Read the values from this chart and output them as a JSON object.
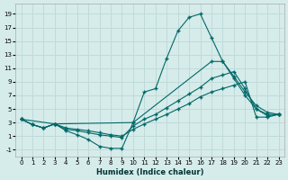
{
  "xlabel": "Humidex (Indice chaleur)",
  "background_color": "#d6ecea",
  "grid_color": "#c0dada",
  "line_color": "#006868",
  "xlim": [
    -0.5,
    23.5
  ],
  "ylim": [
    -2.0,
    20.5
  ],
  "xticks": [
    0,
    1,
    2,
    3,
    4,
    5,
    6,
    7,
    8,
    9,
    10,
    11,
    12,
    13,
    14,
    15,
    16,
    17,
    18,
    19,
    20,
    21,
    22,
    23
  ],
  "yticks": [
    -1,
    1,
    3,
    5,
    7,
    9,
    11,
    13,
    15,
    17,
    19
  ],
  "line1_x": [
    0,
    1,
    2,
    3,
    4,
    5,
    6,
    7,
    8,
    9,
    10,
    11,
    12,
    13,
    14,
    15,
    16,
    17,
    18,
    19,
    20,
    21,
    22,
    23
  ],
  "line1_y": [
    3.5,
    2.7,
    2.2,
    2.8,
    1.8,
    1.2,
    0.5,
    -0.5,
    -0.8,
    -0.8,
    3.0,
    7.5,
    8.0,
    12.5,
    16.5,
    18.5,
    19.0,
    15.5,
    12.0,
    9.8,
    7.5,
    5.5,
    4.5,
    4.2
  ],
  "line2_x": [
    0,
    3,
    10,
    17,
    18,
    19,
    20,
    21,
    22,
    23
  ],
  "line2_y": [
    3.5,
    2.8,
    3.0,
    12.0,
    12.0,
    9.5,
    7.0,
    5.0,
    4.2,
    4.2
  ],
  "line3_x": [
    0,
    1,
    2,
    3,
    4,
    5,
    6,
    7,
    8,
    9,
    10,
    11,
    12,
    13,
    14,
    15,
    16,
    17,
    18,
    19,
    20,
    21,
    22,
    23
  ],
  "line3_y": [
    3.5,
    2.7,
    2.2,
    2.8,
    2.0,
    1.8,
    1.5,
    1.2,
    1.0,
    0.8,
    2.5,
    3.5,
    4.2,
    5.2,
    6.2,
    7.2,
    8.2,
    9.5,
    10.0,
    10.5,
    8.0,
    5.0,
    4.0,
    4.2
  ],
  "line4_x": [
    0,
    1,
    2,
    3,
    4,
    5,
    6,
    7,
    8,
    9,
    10,
    11,
    12,
    13,
    14,
    15,
    16,
    17,
    18,
    19,
    20,
    21,
    22,
    23
  ],
  "line4_y": [
    3.5,
    2.7,
    2.2,
    2.8,
    2.2,
    2.0,
    1.8,
    1.5,
    1.2,
    1.0,
    2.0,
    2.8,
    3.5,
    4.2,
    5.0,
    5.8,
    6.8,
    7.5,
    8.0,
    8.5,
    9.0,
    3.8,
    3.8,
    4.2
  ]
}
